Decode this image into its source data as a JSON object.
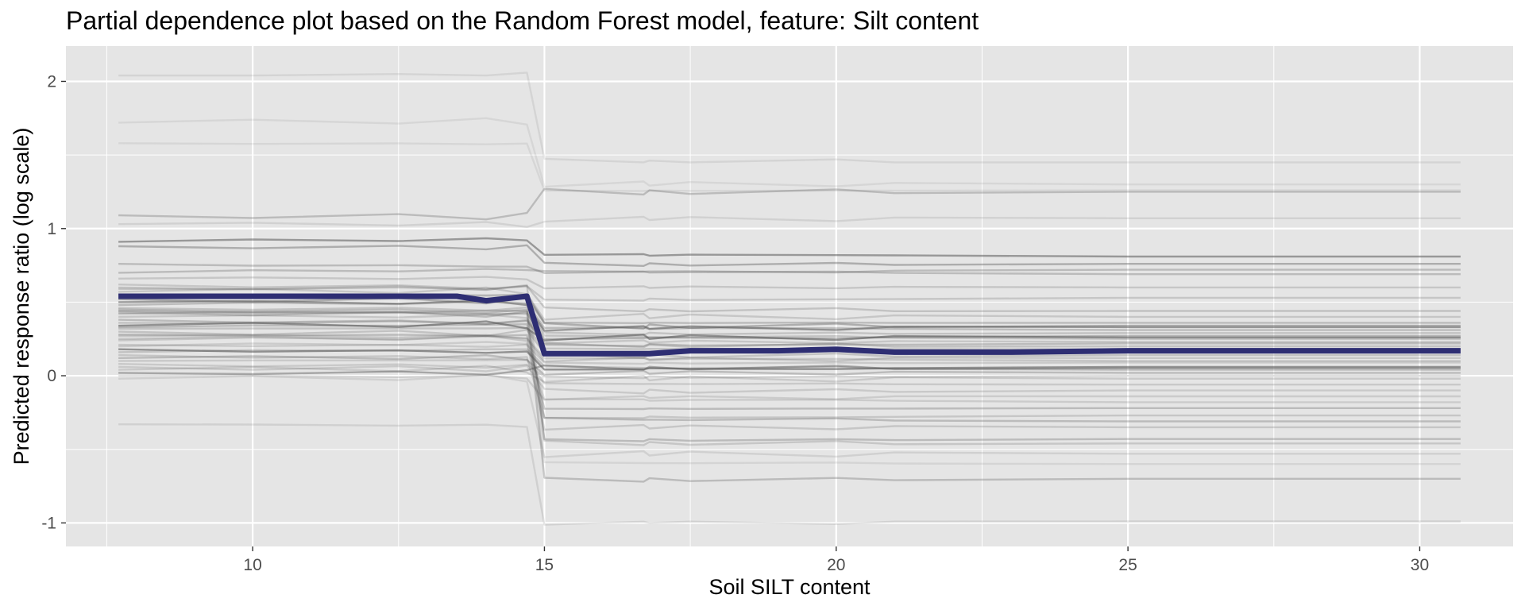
{
  "chart_data": {
    "type": "line",
    "title": "Partial dependence plot based on the Random Forest model, feature: Silt content",
    "xlabel": "Soil SILT content",
    "ylabel": "Predicted response ratio (log scale)",
    "xlim": [
      6.8,
      31.6
    ],
    "ylim": [
      -1.16,
      2.24
    ],
    "x_ticks": [
      10,
      15,
      20,
      25,
      30
    ],
    "y_ticks": [
      -1,
      0,
      1,
      2
    ],
    "grid": true,
    "panel_background": "#e5e5e5",
    "grid_color": "#ffffff",
    "mean_color": "#2e2e73",
    "ice_color": "#5a5a5a",
    "mean_series": {
      "name": "",
      "points": [
        [
          7.7,
          0.54
        ],
        [
          9.0,
          0.54
        ],
        [
          11.0,
          0.54
        ],
        [
          12.5,
          0.54
        ],
        [
          13.5,
          0.54
        ],
        [
          14.0,
          0.51
        ],
        [
          14.7,
          0.54
        ],
        [
          15.0,
          0.15
        ],
        [
          16.0,
          0.15
        ],
        [
          16.8,
          0.15
        ],
        [
          17.5,
          0.17
        ],
        [
          19.0,
          0.17
        ],
        [
          20.0,
          0.18
        ],
        [
          21.0,
          0.16
        ],
        [
          23.0,
          0.16
        ],
        [
          25.0,
          0.17
        ],
        [
          28.0,
          0.17
        ],
        [
          30.7,
          0.17
        ]
      ]
    },
    "ice_series": [
      {
        "left": 2.04,
        "right": 1.45,
        "opacity": 0.12
      },
      {
        "left": 1.72,
        "right": 1.3,
        "opacity": 0.1
      },
      {
        "left": 1.58,
        "right": 1.26,
        "opacity": 0.1
      },
      {
        "left": 1.09,
        "right": 1.25,
        "opacity": 0.3
      },
      {
        "left": 1.03,
        "right": 1.07,
        "opacity": 0.14
      },
      {
        "left": 0.91,
        "right": 0.81,
        "opacity": 0.55
      },
      {
        "left": 0.88,
        "right": 0.76,
        "opacity": 0.4
      },
      {
        "left": 0.76,
        "right": 0.72,
        "opacity": 0.3
      },
      {
        "left": 0.7,
        "right": 0.69,
        "opacity": 0.3
      },
      {
        "left": 0.66,
        "right": 0.6,
        "opacity": 0.22
      },
      {
        "left": 0.62,
        "right": 0.53,
        "opacity": 0.22
      },
      {
        "left": 0.59,
        "right": 0.44,
        "opacity": 0.25
      },
      {
        "left": 0.57,
        "right": 0.4,
        "opacity": 0.22
      },
      {
        "left": 0.55,
        "right": 0.36,
        "opacity": 0.3
      },
      {
        "left": 0.52,
        "right": 0.34,
        "opacity": 0.4
      },
      {
        "left": 0.5,
        "right": 0.33,
        "opacity": 0.55
      },
      {
        "left": 0.48,
        "right": 0.31,
        "opacity": 0.3
      },
      {
        "left": 0.46,
        "right": 0.29,
        "opacity": 0.25
      },
      {
        "left": 0.44,
        "right": 0.27,
        "opacity": 0.35
      },
      {
        "left": 0.42,
        "right": 0.25,
        "opacity": 0.25
      },
      {
        "left": 0.4,
        "right": 0.23,
        "opacity": 0.22
      },
      {
        "left": 0.38,
        "right": 0.22,
        "opacity": 0.3
      },
      {
        "left": 0.36,
        "right": 0.2,
        "opacity": 0.25
      },
      {
        "left": 0.34,
        "right": 0.26,
        "opacity": 0.6
      },
      {
        "left": 0.32,
        "right": 0.18,
        "opacity": 0.25
      },
      {
        "left": 0.3,
        "right": 0.14,
        "opacity": 0.25
      },
      {
        "left": 0.27,
        "right": 0.12,
        "opacity": 0.22
      },
      {
        "left": 0.24,
        "right": 0.1,
        "opacity": 0.22
      },
      {
        "left": 0.21,
        "right": 0.09,
        "opacity": 0.2
      },
      {
        "left": 0.18,
        "right": 0.06,
        "opacity": 0.6
      },
      {
        "left": 0.16,
        "right": 0.04,
        "opacity": 0.25
      },
      {
        "left": 0.12,
        "right": 0.02,
        "opacity": 0.3
      },
      {
        "left": 0.08,
        "right": 0.0,
        "opacity": 0.2
      },
      {
        "left": 0.02,
        "right": 0.05,
        "opacity": 0.45
      },
      {
        "left": 0.04,
        "right": -0.02,
        "opacity": 0.2
      },
      {
        "left": 0.1,
        "right": -0.06,
        "opacity": 0.2
      },
      {
        "left": 0.06,
        "right": -0.1,
        "opacity": 0.2
      },
      {
        "left": 0.0,
        "right": -0.14,
        "opacity": 0.18
      },
      {
        "left": 0.2,
        "right": -0.18,
        "opacity": 0.18
      },
      {
        "left": 0.28,
        "right": -0.22,
        "opacity": 0.3
      },
      {
        "left": 0.14,
        "right": -0.27,
        "opacity": 0.22
      },
      {
        "left": 0.33,
        "right": -0.31,
        "opacity": 0.3
      },
      {
        "left": 0.25,
        "right": -0.35,
        "opacity": 0.22
      },
      {
        "left": 0.45,
        "right": -0.43,
        "opacity": 0.3
      },
      {
        "left": 0.6,
        "right": -0.46,
        "opacity": 0.22
      },
      {
        "left": -0.02,
        "right": -0.53,
        "opacity": 0.15
      },
      {
        "left": 0.53,
        "right": -0.6,
        "opacity": 0.12
      },
      {
        "left": 0.43,
        "right": -0.7,
        "opacity": 0.3
      },
      {
        "left": -0.33,
        "right": -0.99,
        "opacity": 0.15
      }
    ]
  }
}
